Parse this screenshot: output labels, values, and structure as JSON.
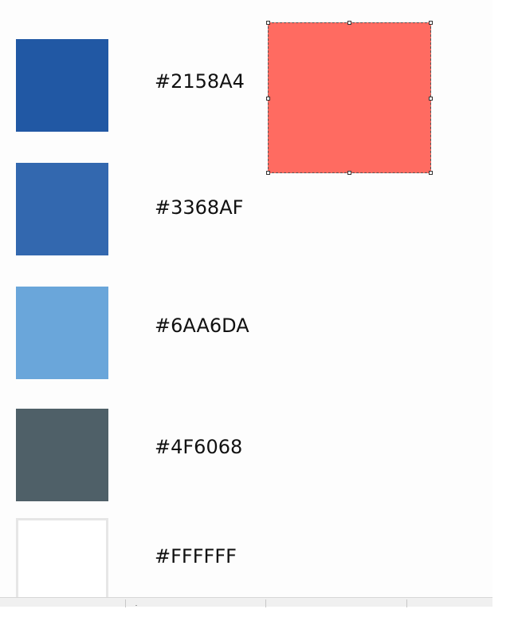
{
  "swatches": [
    {
      "color": "#2158A4",
      "label": "#2158A4"
    },
    {
      "color": "#3368AF",
      "label": "#3368AF"
    },
    {
      "color": "#6AA6DA",
      "label": "#6AA6DA"
    },
    {
      "color": "#4F6068",
      "label": "#4F6068"
    },
    {
      "color": "#FFFFFF",
      "label": "#FFFFFF"
    }
  ],
  "selected_shape": {
    "fill": "#FF6B61"
  },
  "colors": {
    "canvas_background": "#FDFDFD",
    "statusbar_background": "#F0F0F0",
    "white_swatch_border": "#E6E6E6"
  },
  "statusbar": {
    "icons": [
      "cursor-position-icon",
      "selection-size-icon"
    ]
  }
}
